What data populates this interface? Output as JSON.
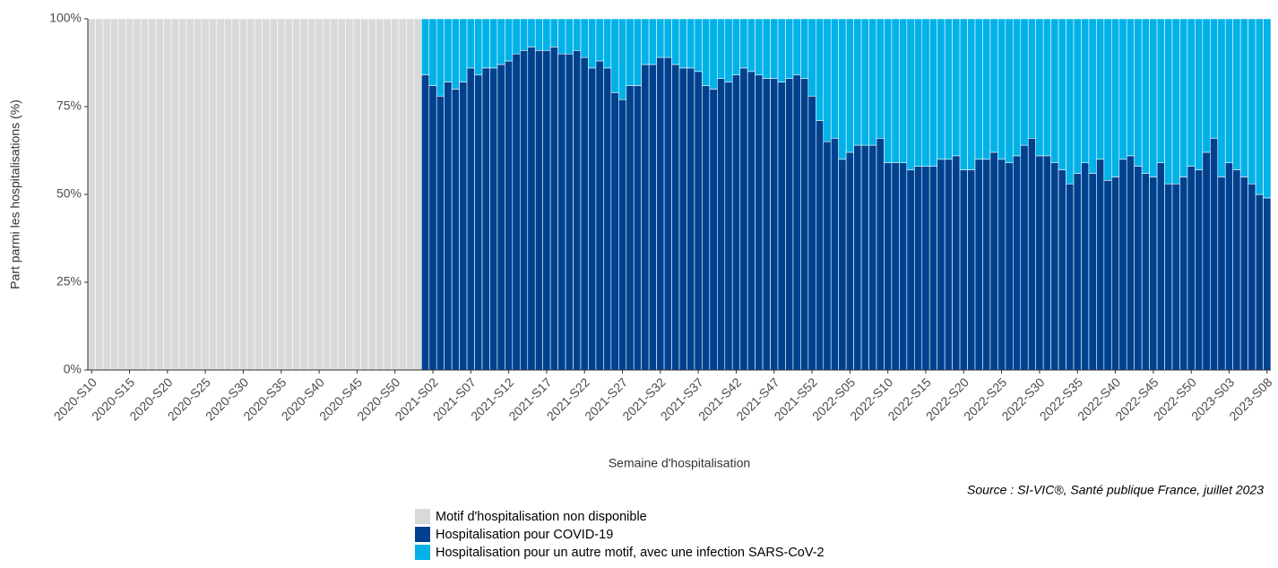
{
  "chart_data": {
    "type": "stacked_bar_100",
    "x_label": "Semaine d'hospitalisation",
    "y_label": "Part parmi les hospitalisations (%)",
    "source": "Source : SI-VIC®, Santé publique France, juillet 2023",
    "categories": [
      "2020-S10",
      null,
      null,
      null,
      null,
      "2020-S15",
      null,
      null,
      null,
      null,
      "2020-S20",
      null,
      null,
      null,
      null,
      "2020-S25",
      null,
      null,
      null,
      null,
      "2020-S30",
      null,
      null,
      null,
      null,
      "2020-S35",
      null,
      null,
      null,
      null,
      "2020-S40",
      null,
      null,
      null,
      null,
      "2020-S45",
      null,
      null,
      null,
      null,
      "2020-S50",
      null,
      null,
      null,
      null,
      "2021-S02",
      null,
      null,
      null,
      null,
      "2021-S07",
      null,
      null,
      null,
      null,
      "2021-S12",
      null,
      null,
      null,
      null,
      "2021-S17",
      null,
      null,
      null,
      null,
      "2021-S22",
      null,
      null,
      null,
      null,
      "2021-S27",
      null,
      null,
      null,
      null,
      "2021-S32",
      null,
      null,
      null,
      null,
      "2021-S37",
      null,
      null,
      null,
      null,
      "2021-S42",
      null,
      null,
      null,
      null,
      "2021-S47",
      null,
      null,
      null,
      null,
      "2021-S52",
      null,
      null,
      null,
      null,
      "2022-S05",
      null,
      null,
      null,
      null,
      "2022-S10",
      null,
      null,
      null,
      null,
      "2022-S15",
      null,
      null,
      null,
      null,
      "2022-S20",
      null,
      null,
      null,
      null,
      "2022-S25",
      null,
      null,
      null,
      null,
      "2022-S30",
      null,
      null,
      null,
      null,
      "2022-S35",
      null,
      null,
      null,
      null,
      "2022-S40",
      null,
      null,
      null,
      null,
      "2022-S45",
      null,
      null,
      null,
      null,
      "2022-S50",
      null,
      null,
      null,
      null,
      "2023-S03",
      null,
      null,
      null,
      null,
      "2023-S08"
    ],
    "series": [
      {
        "name": "Motif d'hospitalisation non disponible",
        "color": "#d9d9d9",
        "values": [
          100,
          100,
          100,
          100,
          100,
          100,
          100,
          100,
          100,
          100,
          100,
          100,
          100,
          100,
          100,
          100,
          100,
          100,
          100,
          100,
          100,
          100,
          100,
          100,
          100,
          100,
          100,
          100,
          100,
          100,
          100,
          100,
          100,
          100,
          100,
          100,
          100,
          100,
          100,
          100,
          100,
          100,
          100,
          100,
          null,
          null,
          null,
          null,
          null,
          null,
          null,
          null,
          null,
          null,
          null,
          null,
          null,
          null,
          null,
          null,
          null,
          null,
          null,
          null,
          null,
          null,
          null,
          null,
          null,
          null,
          null,
          null,
          null,
          null,
          null,
          null,
          null,
          null,
          null,
          null,
          null,
          null,
          null,
          null,
          null,
          null,
          null,
          null,
          null,
          null,
          null,
          null,
          null,
          null,
          null,
          null,
          null,
          null,
          null,
          null,
          null,
          null,
          null,
          null,
          null,
          null,
          null,
          null,
          null,
          null,
          null,
          null,
          null,
          null,
          null,
          null,
          null,
          null,
          null,
          null,
          null,
          null,
          null,
          null,
          null,
          null,
          null,
          null,
          null,
          null,
          null,
          null,
          null,
          null,
          null,
          null,
          null,
          null,
          null,
          null,
          null,
          null,
          null,
          null,
          null,
          null,
          null,
          null,
          null,
          null,
          null,
          null,
          null,
          null,
          null,
          null
        ]
      },
      {
        "name": "Hospitalisation pour COVID-19",
        "color": "#00418f",
        "values": [
          null,
          null,
          null,
          null,
          null,
          null,
          null,
          null,
          null,
          null,
          null,
          null,
          null,
          null,
          null,
          null,
          null,
          null,
          null,
          null,
          null,
          null,
          null,
          null,
          null,
          null,
          null,
          null,
          null,
          null,
          null,
          null,
          null,
          null,
          null,
          null,
          null,
          null,
          null,
          null,
          null,
          null,
          null,
          null,
          84,
          81,
          78,
          82,
          80,
          82,
          86,
          84,
          86,
          86,
          87,
          88,
          90,
          91,
          92,
          91,
          91,
          92,
          90,
          90,
          91,
          89,
          86,
          88,
          86,
          79,
          77,
          81,
          81,
          87,
          87,
          89,
          89,
          87,
          86,
          86,
          85,
          81,
          80,
          83,
          82,
          84,
          86,
          85,
          84,
          83,
          83,
          82,
          83,
          84,
          83,
          78,
          71,
          65,
          66,
          60,
          62,
          64,
          64,
          64,
          66,
          59,
          59,
          59,
          57,
          58,
          58,
          58,
          60,
          60,
          61,
          57,
          57,
          60,
          60,
          62,
          60,
          59,
          61,
          64,
          66,
          61,
          61,
          59,
          57,
          53,
          56,
          59,
          56,
          60,
          54,
          55,
          60,
          61,
          58,
          56,
          55,
          59,
          53,
          53,
          55,
          58,
          57,
          62,
          66,
          55,
          59,
          57,
          55,
          53,
          50,
          49
        ]
      },
      {
        "name": "Hospitalisation pour un autre motif, avec une infection SARS-CoV-2",
        "color": "#00b2e7",
        "values": [
          null,
          null,
          null,
          null,
          null,
          null,
          null,
          null,
          null,
          null,
          null,
          null,
          null,
          null,
          null,
          null,
          null,
          null,
          null,
          null,
          null,
          null,
          null,
          null,
          null,
          null,
          null,
          null,
          null,
          null,
          null,
          null,
          null,
          null,
          null,
          null,
          null,
          null,
          null,
          null,
          null,
          null,
          null,
          null,
          16,
          19,
          22,
          18,
          20,
          18,
          14,
          16,
          14,
          14,
          13,
          12,
          10,
          9,
          8,
          9,
          9,
          8,
          10,
          10,
          9,
          11,
          14,
          12,
          14,
          21,
          23,
          19,
          19,
          13,
          13,
          11,
          11,
          13,
          14,
          14,
          15,
          19,
          20,
          17,
          18,
          16,
          14,
          15,
          16,
          17,
          17,
          18,
          17,
          16,
          17,
          22,
          29,
          35,
          34,
          40,
          38,
          36,
          36,
          36,
          34,
          41,
          41,
          41,
          43,
          42,
          42,
          42,
          40,
          40,
          39,
          43,
          43,
          40,
          40,
          38,
          40,
          41,
          39,
          36,
          34,
          39,
          39,
          41,
          43,
          47,
          44,
          41,
          44,
          40,
          46,
          45,
          40,
          39,
          42,
          44,
          45,
          41,
          47,
          47,
          45,
          42,
          43,
          38,
          34,
          45,
          41,
          43,
          45,
          47,
          50,
          51
        ]
      }
    ],
    "ylim": [
      0,
      100
    ],
    "yticks": [
      {
        "value": 0,
        "label": "0%"
      },
      {
        "value": 25,
        "label": "25%"
      },
      {
        "value": 50,
        "label": "50%"
      },
      {
        "value": 75,
        "label": "75%"
      },
      {
        "value": 100,
        "label": "100%"
      }
    ]
  }
}
